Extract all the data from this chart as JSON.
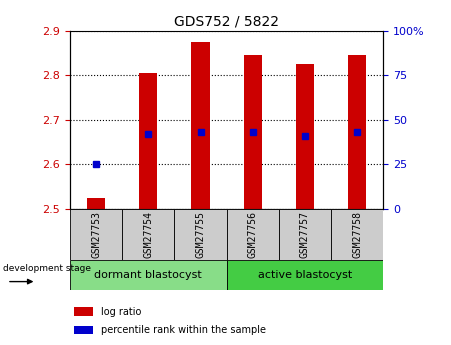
{
  "title": "GDS752 / 5822",
  "samples": [
    "GSM27753",
    "GSM27754",
    "GSM27755",
    "GSM27756",
    "GSM27757",
    "GSM27758"
  ],
  "log_ratios": [
    2.525,
    2.805,
    2.875,
    2.845,
    2.825,
    2.845
  ],
  "percentile_ranks": [
    25,
    42,
    43,
    43,
    41,
    43
  ],
  "bar_bottom": 2.5,
  "ylim": [
    2.5,
    2.9
  ],
  "right_ylim": [
    0,
    100
  ],
  "right_yticks": [
    0,
    25,
    50,
    75,
    100
  ],
  "left_yticks": [
    2.5,
    2.6,
    2.7,
    2.8,
    2.9
  ],
  "bar_color": "#cc0000",
  "dot_color": "#0000cc",
  "bar_width": 0.35,
  "groups": [
    {
      "label": "dormant blastocyst",
      "color": "#88dd88"
    },
    {
      "label": "active blastocyst",
      "color": "#44cc44"
    }
  ],
  "group_label": "development stage",
  "legend_items": [
    {
      "label": "log ratio",
      "color": "#cc0000"
    },
    {
      "label": "percentile rank within the sample",
      "color": "#0000cc"
    }
  ],
  "cell_color": "#cccccc",
  "plot_bg": "#ffffff",
  "title_fontsize": 10,
  "tick_fontsize": 8,
  "label_fontsize": 8
}
